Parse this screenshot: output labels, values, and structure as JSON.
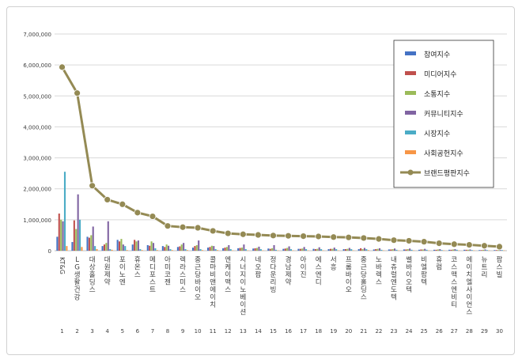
{
  "chart_data": {
    "type": "bar",
    "title": "",
    "xlabel": "",
    "ylabel": "",
    "ylim": [
      0,
      7000000
    ],
    "yticks": [
      0,
      1000000,
      2000000,
      3000000,
      4000000,
      5000000,
      6000000,
      7000000
    ],
    "ytick_labels": [
      "0",
      "1,000,000",
      "2,000,000",
      "3,000,000",
      "4,000,000",
      "5,000,000",
      "6,000,000",
      "7,000,000"
    ],
    "grid": true,
    "legend_position": "right",
    "ranks": [
      "1",
      "2",
      "3",
      "4",
      "5",
      "6",
      "7",
      "8",
      "9",
      "10",
      "11",
      "12",
      "13",
      "14",
      "15",
      "16",
      "17",
      "18",
      "19",
      "20",
      "21",
      "22",
      "23",
      "24",
      "25",
      "26",
      "27",
      "28",
      "29",
      "30"
    ],
    "categories": [
      "KT&G",
      "LG생활건강",
      "대상홀딩스",
      "대원제약",
      "포이노엔",
      "휴온스",
      "메디포스트",
      "아미코젠",
      "렉라스미스",
      "종근당바이오",
      "콜마비앤에이치",
      "엔케이맥스",
      "시너지이노베이션",
      "네오팜",
      "정다운리빙",
      "경남제약",
      "아이진",
      "에스엔디",
      "서흥",
      "프롬바이오",
      "종근당홀딩스",
      "노바렉스",
      "내츄럴엔도텍",
      "쎌바이오텍",
      "비엘팜텍",
      "휴럼",
      "코스맥스엔비티",
      "에이치엘사이언스",
      "뉴트리",
      "팜스빌"
    ],
    "series": [
      {
        "name": "참여지수",
        "kind": "bar",
        "color": "#4472c4",
        "values": [
          450000,
          280000,
          450000,
          150000,
          350000,
          200000,
          180000,
          150000,
          120000,
          100000,
          100000,
          80000,
          80000,
          70000,
          70000,
          60000,
          60000,
          60000,
          50000,
          50000,
          50000,
          40000,
          40000,
          40000,
          30000,
          30000,
          30000,
          30000,
          20000,
          20000
        ]
      },
      {
        "name": "미디어지수",
        "kind": "bar",
        "color": "#c0504d",
        "values": [
          1200000,
          980000,
          420000,
          200000,
          300000,
          350000,
          160000,
          120000,
          140000,
          150000,
          120000,
          100000,
          90000,
          80000,
          60000,
          70000,
          60000,
          50000,
          60000,
          50000,
          80000,
          50000,
          40000,
          40000,
          40000,
          30000,
          30000,
          30000,
          20000,
          20000
        ]
      },
      {
        "name": "소통지수",
        "kind": "bar",
        "color": "#9bbb59",
        "values": [
          1000000,
          700000,
          500000,
          250000,
          380000,
          300000,
          300000,
          200000,
          200000,
          180000,
          160000,
          120000,
          100000,
          90000,
          80000,
          90000,
          70000,
          60000,
          60000,
          60000,
          50000,
          60000,
          50000,
          50000,
          40000,
          40000,
          40000,
          30000,
          30000,
          20000
        ]
      },
      {
        "name": "커뮤니티지수",
        "kind": "bar",
        "color": "#8064a2",
        "values": [
          950000,
          1820000,
          780000,
          950000,
          200000,
          330000,
          250000,
          160000,
          250000,
          330000,
          150000,
          180000,
          200000,
          130000,
          180000,
          140000,
          120000,
          110000,
          100000,
          90000,
          90000,
          80000,
          70000,
          70000,
          60000,
          50000,
          50000,
          40000,
          40000,
          30000
        ]
      },
      {
        "name": "시장지수",
        "kind": "bar",
        "color": "#4bacc6",
        "values": [
          2550000,
          1000000,
          150000,
          50000,
          150000,
          50000,
          80000,
          50000,
          50000,
          50000,
          50000,
          50000,
          50000,
          50000,
          30000,
          50000,
          50000,
          50000,
          50000,
          50000,
          50000,
          30000,
          30000,
          30000,
          30000,
          20000,
          30000,
          20000,
          20000,
          20000
        ]
      },
      {
        "name": "사회공헌지수",
        "kind": "bar",
        "color": "#f79646",
        "values": [
          150000,
          120000,
          50000,
          30000,
          20000,
          20000,
          20000,
          20000,
          20000,
          20000,
          20000,
          10000,
          10000,
          10000,
          10000,
          10000,
          10000,
          10000,
          10000,
          10000,
          20000,
          10000,
          10000,
          10000,
          10000,
          10000,
          10000,
          10000,
          10000,
          10000
        ]
      },
      {
        "name": "브랜드평판지수",
        "kind": "line",
        "color": "#948a54",
        "values": [
          5930000,
          5090000,
          2100000,
          1650000,
          1500000,
          1230000,
          1110000,
          800000,
          760000,
          740000,
          640000,
          560000,
          530000,
          510000,
          490000,
          480000,
          470000,
          460000,
          440000,
          430000,
          410000,
          380000,
          340000,
          320000,
          290000,
          240000,
          210000,
          190000,
          160000,
          130000
        ]
      }
    ]
  }
}
